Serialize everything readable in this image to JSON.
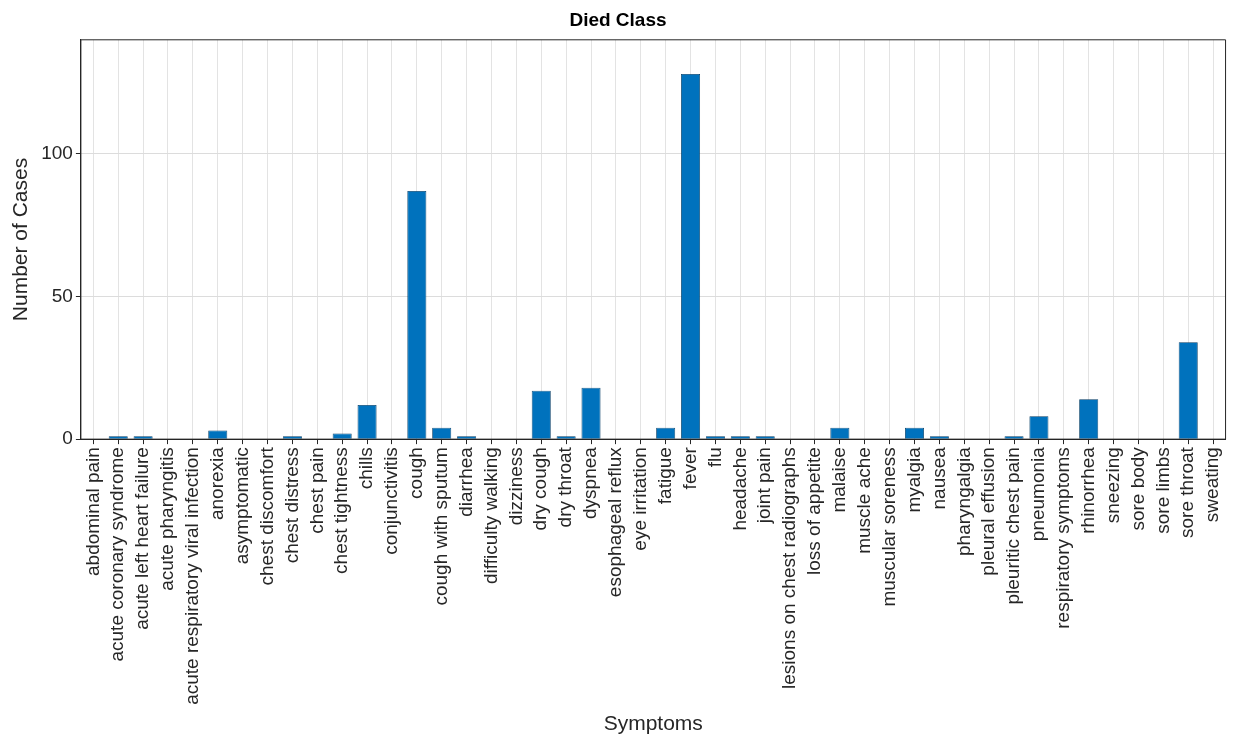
{
  "chart_data": {
    "type": "bar",
    "title": "Died Class",
    "xlabel": "Symptoms",
    "ylabel": "Number of Cases",
    "categories": [
      "abdominal pain",
      "acute coronary syndrome",
      "acute left heart failure",
      "acute pharyngitis",
      "acute respiratory viral infection",
      "anorexia",
      "asymptomatic",
      "chest discomfort",
      "chest distress",
      "chest pain",
      "chest tightness",
      "chills",
      "conjunctivitis",
      "cough",
      "cough with sputum",
      "diarrhea",
      "difficulty walking",
      "dizziness",
      "dry cough",
      "dry throat",
      "dyspnea",
      "esophageal reflux",
      "eye irritation",
      "fatigue",
      "fever",
      "flu",
      "headache",
      "joint pain",
      "lesions on chest radiographs",
      "loss of appetite",
      "malaise",
      "muscle ache",
      "muscular soreness",
      "myalgia",
      "nausea",
      "pharyngalgia",
      "pleural effusion",
      "pleuritic chest pain",
      "pneumonia",
      "respiratory symptoms",
      "rhinorrhea",
      "sneezing",
      "sore body",
      "sore limbs",
      "sore throat",
      "sweating"
    ],
    "values": [
      0,
      1,
      1,
      0,
      0,
      3,
      0,
      0,
      1,
      0,
      2,
      12,
      0,
      87,
      4,
      1,
      0,
      0,
      17,
      1,
      18,
      0,
      0,
      4,
      128,
      1,
      1,
      1,
      0,
      0,
      4,
      0,
      0,
      4,
      1,
      0,
      0,
      1,
      8,
      0,
      14,
      0,
      0,
      0,
      34,
      0
    ],
    "color": "#0072bd",
    "ylim": [
      0,
      140
    ],
    "yticks": [
      0,
      50,
      100
    ],
    "grid": true,
    "legend": false
  }
}
